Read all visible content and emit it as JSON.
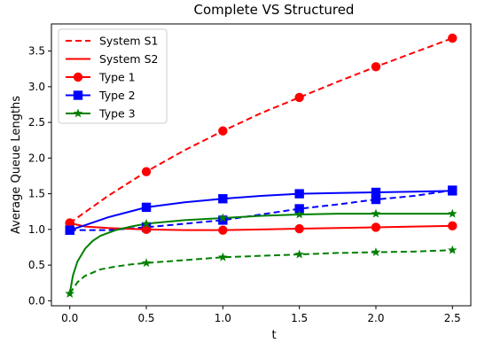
{
  "chart_data": {
    "type": "line",
    "title": "Complete VS Structured",
    "xlabel": "t",
    "ylabel": "Average Queue Lengths",
    "xlim": [
      -0.12,
      2.62
    ],
    "ylim": [
      -0.07,
      3.88
    ],
    "xticks": [
      0.0,
      0.5,
      1.0,
      1.5,
      2.0,
      2.5
    ],
    "xtick_labels": [
      "0.0",
      "0.5",
      "1.0",
      "1.5",
      "2.0",
      "2.5"
    ],
    "yticks": [
      0.0,
      0.5,
      1.0,
      1.5,
      2.0,
      2.5,
      3.0,
      3.5
    ],
    "ytick_labels": [
      "0.0",
      "0.5",
      "1.0",
      "1.5",
      "2.0",
      "2.5",
      "3.0",
      "3.5"
    ],
    "grid": false,
    "legend_position": "top-left",
    "legend": [
      {
        "label": "System S1",
        "color": "#ff0000",
        "linestyle": "dashed",
        "marker": "none"
      },
      {
        "label": "System S2",
        "color": "#ff0000",
        "linestyle": "solid",
        "marker": "none"
      },
      {
        "label": "Type 1",
        "color": "#ff0000",
        "linestyle": "solid",
        "marker": "circle"
      },
      {
        "label": "Type 2",
        "color": "#0000ff",
        "linestyle": "solid",
        "marker": "square"
      },
      {
        "label": "Type 3",
        "color": "#008000",
        "linestyle": "solid",
        "marker": "star"
      }
    ],
    "markers_x": [
      0.0,
      0.5,
      1.0,
      1.5,
      2.0,
      2.5
    ],
    "series": [
      {
        "name": "Type 1",
        "system": "S1",
        "color": "#ff0000",
        "marker": "circle",
        "x": [
          0.0,
          0.25,
          0.5,
          0.75,
          1.0,
          1.25,
          1.5,
          1.75,
          2.0,
          2.25,
          2.5
        ],
        "y": [
          1.09,
          1.47,
          1.81,
          2.11,
          2.38,
          2.63,
          2.85,
          3.07,
          3.28,
          3.48,
          3.68
        ]
      },
      {
        "name": "Type 2",
        "system": "S1",
        "color": "#0000ff",
        "marker": "square",
        "x": [
          0.0,
          0.25,
          0.5,
          0.75,
          1.0,
          1.25,
          1.5,
          1.75,
          2.0,
          2.25,
          2.5
        ],
        "y": [
          0.99,
          0.99,
          1.03,
          1.08,
          1.13,
          1.21,
          1.29,
          1.35,
          1.42,
          1.47,
          1.55
        ]
      },
      {
        "name": "Type 3",
        "system": "S1",
        "color": "#008000",
        "marker": "star",
        "x": [
          0.0,
          0.05,
          0.1,
          0.2,
          0.3,
          0.4,
          0.5,
          0.75,
          1.0,
          1.25,
          1.5,
          1.75,
          2.0,
          2.25,
          2.5
        ],
        "y": [
          0.1,
          0.26,
          0.35,
          0.44,
          0.48,
          0.51,
          0.53,
          0.57,
          0.61,
          0.63,
          0.65,
          0.67,
          0.68,
          0.69,
          0.71
        ]
      },
      {
        "name": "Type 1",
        "system": "S2",
        "color": "#ff0000",
        "marker": "circle",
        "x": [
          0.0,
          0.1,
          0.25,
          0.5,
          0.75,
          1.0,
          1.25,
          1.5,
          1.75,
          2.0,
          2.25,
          2.5
        ],
        "y": [
          1.09,
          1.04,
          1.02,
          1.0,
          0.99,
          0.99,
          1.0,
          1.01,
          1.02,
          1.03,
          1.04,
          1.05
        ]
      },
      {
        "name": "Type 2",
        "system": "S2",
        "color": "#0000ff",
        "marker": "square",
        "x": [
          0.0,
          0.1,
          0.25,
          0.5,
          0.75,
          1.0,
          1.25,
          1.5,
          1.75,
          2.0,
          2.25,
          2.5
        ],
        "y": [
          0.99,
          1.06,
          1.17,
          1.31,
          1.38,
          1.43,
          1.47,
          1.5,
          1.51,
          1.52,
          1.53,
          1.54
        ]
      },
      {
        "name": "Type 3",
        "system": "S2",
        "color": "#008000",
        "marker": "star",
        "x": [
          0.0,
          0.02,
          0.05,
          0.1,
          0.15,
          0.2,
          0.3,
          0.4,
          0.5,
          0.75,
          1.0,
          1.25,
          1.5,
          1.75,
          2.0,
          2.25,
          2.5
        ],
        "y": [
          0.1,
          0.35,
          0.55,
          0.73,
          0.84,
          0.91,
          0.99,
          1.04,
          1.08,
          1.13,
          1.16,
          1.19,
          1.21,
          1.22,
          1.22,
          1.22,
          1.22
        ]
      }
    ]
  }
}
